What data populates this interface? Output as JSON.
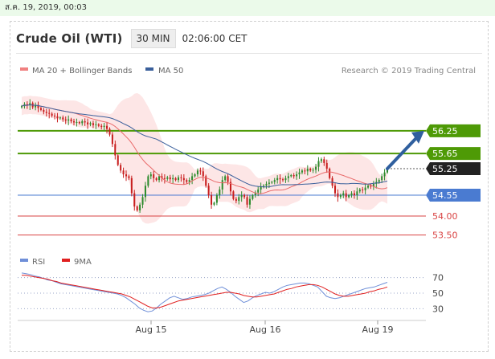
{
  "topbar": {
    "date": "ส.ค. 19, 2019, 00:03"
  },
  "header": {
    "title": "Crude Oil (WTI)",
    "timeframe": "30 MIN",
    "time": "02:06:00 CET"
  },
  "watermark": "Research © 2019 Trading Central",
  "colors": {
    "candle_up": "#2e8b2e",
    "candle_down": "#c81e1e",
    "ma50": "#3a5f9b",
    "ma20": "#e96a6a",
    "bollinger_fill": "#fde3e3",
    "level_green": "#4e9a06",
    "level_blue": "#4a7bd1",
    "level_red": "#d94343",
    "arrow": "#2f5f9e",
    "rsi": "#6f8fd8",
    "ma9": "#e02020"
  },
  "chart_data": [
    {
      "type": "candlestick",
      "legend": [
        "MA 20 + Bollinger Bands",
        "MA 50"
      ],
      "x_ticks": [
        "Aug 15",
        "Aug 16",
        "Aug 19"
      ],
      "ylim": [
        53.3,
        57.2
      ],
      "levels": [
        {
          "value": 56.25,
          "label": "56.25",
          "kind": "resistance"
        },
        {
          "value": 55.65,
          "label": "55.65",
          "kind": "resistance"
        },
        {
          "value": 55.25,
          "label": "55.25",
          "kind": "last"
        },
        {
          "value": 54.55,
          "label": "54.55",
          "kind": "pivot"
        },
        {
          "value": 54.0,
          "label": "54.00",
          "kind": "support"
        },
        {
          "value": 53.5,
          "label": "53.50",
          "kind": "support"
        }
      ],
      "projection": {
        "from": 55.25,
        "to": 56.25
      },
      "closes": [
        56.9,
        56.95,
        56.92,
        56.98,
        56.87,
        56.93,
        56.85,
        56.8,
        56.75,
        56.72,
        56.7,
        56.65,
        56.63,
        56.58,
        56.6,
        56.55,
        56.52,
        56.55,
        56.5,
        56.47,
        56.48,
        56.45,
        56.5,
        56.47,
        56.42,
        56.45,
        56.4,
        56.42,
        56.38,
        56.35,
        56.38,
        56.3,
        56.15,
        55.9,
        55.6,
        55.35,
        55.2,
        55.1,
        55.05,
        55.0,
        54.6,
        54.25,
        54.15,
        54.3,
        54.5,
        54.8,
        55.05,
        55.1,
        55.0,
        54.95,
        55.05,
        55.0,
        54.98,
        55.02,
        54.97,
        55.0,
        54.95,
        55.02,
        55.0,
        54.95,
        54.9,
        54.95,
        55.05,
        55.1,
        55.2,
        55.18,
        55.05,
        54.8,
        54.55,
        54.3,
        54.35,
        54.55,
        54.7,
        54.95,
        55.05,
        54.9,
        54.65,
        54.45,
        54.4,
        54.5,
        54.55,
        54.5,
        54.3,
        54.45,
        54.55,
        54.62,
        54.7,
        54.78,
        54.8,
        54.85,
        54.88,
        54.9,
        54.95,
        55.0,
        54.97,
        54.95,
        55.0,
        55.05,
        55.08,
        55.05,
        55.1,
        55.15,
        55.2,
        55.18,
        55.25,
        55.2,
        55.22,
        55.3,
        55.45,
        55.5,
        55.4,
        55.25,
        55.0,
        54.8,
        54.6,
        54.5,
        54.55,
        54.6,
        54.5,
        54.55,
        54.6,
        54.55,
        54.65,
        54.7,
        54.68,
        54.75,
        54.8,
        54.78,
        54.85,
        54.9,
        54.95,
        55.05,
        55.15,
        55.25
      ]
    },
    {
      "type": "line",
      "title": "RSI",
      "legend": [
        "RSI",
        "9MA"
      ],
      "ylim": [
        20,
        80
      ],
      "y_ticks": [
        70,
        50,
        30
      ],
      "series": [
        {
          "name": "RSI",
          "values": [
            76,
            75,
            74,
            72,
            71,
            69,
            67,
            66,
            64,
            62,
            61,
            60,
            59,
            58,
            57,
            56,
            55,
            54,
            53,
            52,
            51,
            50,
            49,
            47,
            44,
            40,
            36,
            31,
            28,
            26,
            27,
            31,
            36,
            40,
            44,
            46,
            44,
            42,
            43,
            45,
            46,
            47,
            48,
            50,
            53,
            56,
            58,
            55,
            51,
            46,
            42,
            38,
            40,
            44,
            47,
            49,
            51,
            50,
            52,
            55,
            58,
            60,
            61,
            62,
            63,
            63,
            62,
            60,
            58,
            52,
            46,
            44,
            43,
            44,
            46,
            48,
            50,
            52,
            54,
            56,
            57,
            58,
            60,
            62,
            64
          ]
        },
        {
          "name": "9MA",
          "values": [
            73,
            73,
            72,
            71,
            70,
            69,
            68,
            66,
            65,
            63,
            62,
            61,
            60,
            59,
            58,
            57,
            56,
            55,
            54,
            53,
            52,
            51,
            50,
            49,
            47,
            45,
            42,
            39,
            36,
            33,
            31,
            31,
            32,
            34,
            36,
            38,
            40,
            41,
            42,
            43,
            44,
            45,
            46,
            47,
            48,
            49,
            50,
            51,
            51,
            50,
            49,
            47,
            46,
            45,
            45,
            46,
            47,
            48,
            49,
            51,
            53,
            55,
            56,
            58,
            59,
            60,
            61,
            61,
            60,
            58,
            55,
            52,
            49,
            47,
            46,
            46,
            47,
            48,
            49,
            50,
            52,
            53,
            55,
            56,
            58
          ]
        }
      ]
    }
  ]
}
